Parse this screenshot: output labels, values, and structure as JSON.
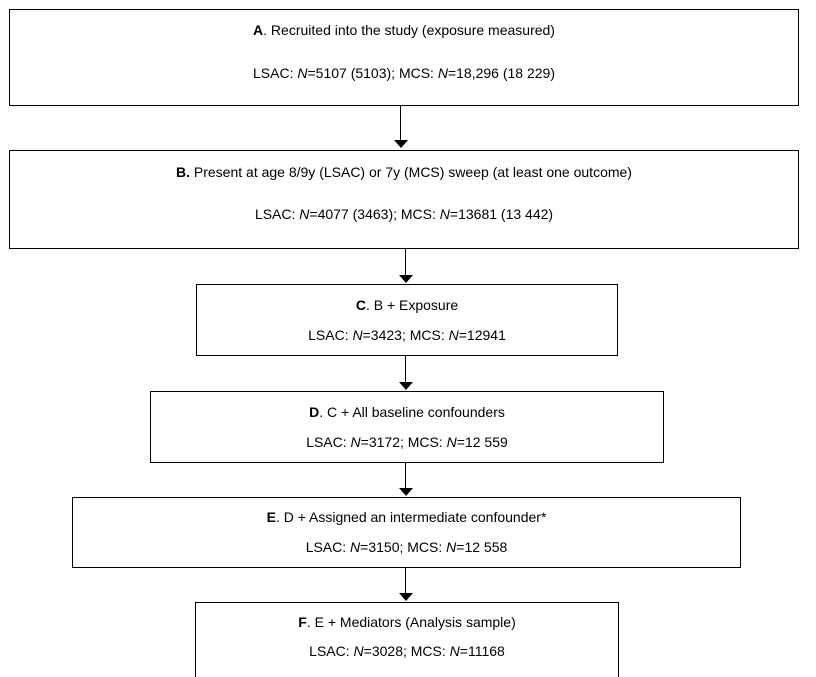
{
  "boxes": [
    {
      "letter": "A",
      "title": ". Recruited into the study (exposure measured)",
      "counts": [
        {
          "text": "LSAC: "
        },
        {
          "text": "N",
          "italic": true
        },
        {
          "text": "=5107 (5103); MCS: "
        },
        {
          "text": "N",
          "italic": true
        },
        {
          "text": "=18,296 (18 229)"
        }
      ]
    },
    {
      "letter": "B.",
      "title": " Present at age 8/9y (LSAC) or 7y (MCS) sweep (at least one outcome)",
      "counts": [
        {
          "text": "LSAC: "
        },
        {
          "text": "N",
          "italic": true
        },
        {
          "text": "=4077 (3463); MCS: "
        },
        {
          "text": "N",
          "italic": true
        },
        {
          "text": "=13681 (13 442)"
        }
      ]
    },
    {
      "letter": "C",
      "title": ". B + Exposure",
      "counts": [
        {
          "text": "LSAC: "
        },
        {
          "text": "N",
          "italic": true
        },
        {
          "text": "=3423; MCS: "
        },
        {
          "text": "N",
          "italic": true
        },
        {
          "text": "=12941"
        }
      ]
    },
    {
      "letter": "D",
      "title": ". C + All baseline confounders",
      "counts": [
        {
          "text": "LSAC: "
        },
        {
          "text": "N",
          "italic": true
        },
        {
          "text": "=3172; MCS: "
        },
        {
          "text": "N",
          "italic": true
        },
        {
          "text": "=12 559"
        }
      ]
    },
    {
      "letter": "E",
      "title": ". D + Assigned an intermediate confounder*",
      "counts": [
        {
          "text": "LSAC: "
        },
        {
          "text": "N",
          "italic": true
        },
        {
          "text": "=3150; MCS: "
        },
        {
          "text": "N",
          "italic": true
        },
        {
          "text": "=12 558"
        }
      ]
    },
    {
      "letter": "F",
      "title": ". E + Mediators (Analysis sample)",
      "counts": [
        {
          "text": "LSAC: "
        },
        {
          "text": "N",
          "italic": true
        },
        {
          "text": "=3028; MCS: "
        },
        {
          "text": "N",
          "italic": true
        },
        {
          "text": "=11168"
        }
      ]
    }
  ]
}
